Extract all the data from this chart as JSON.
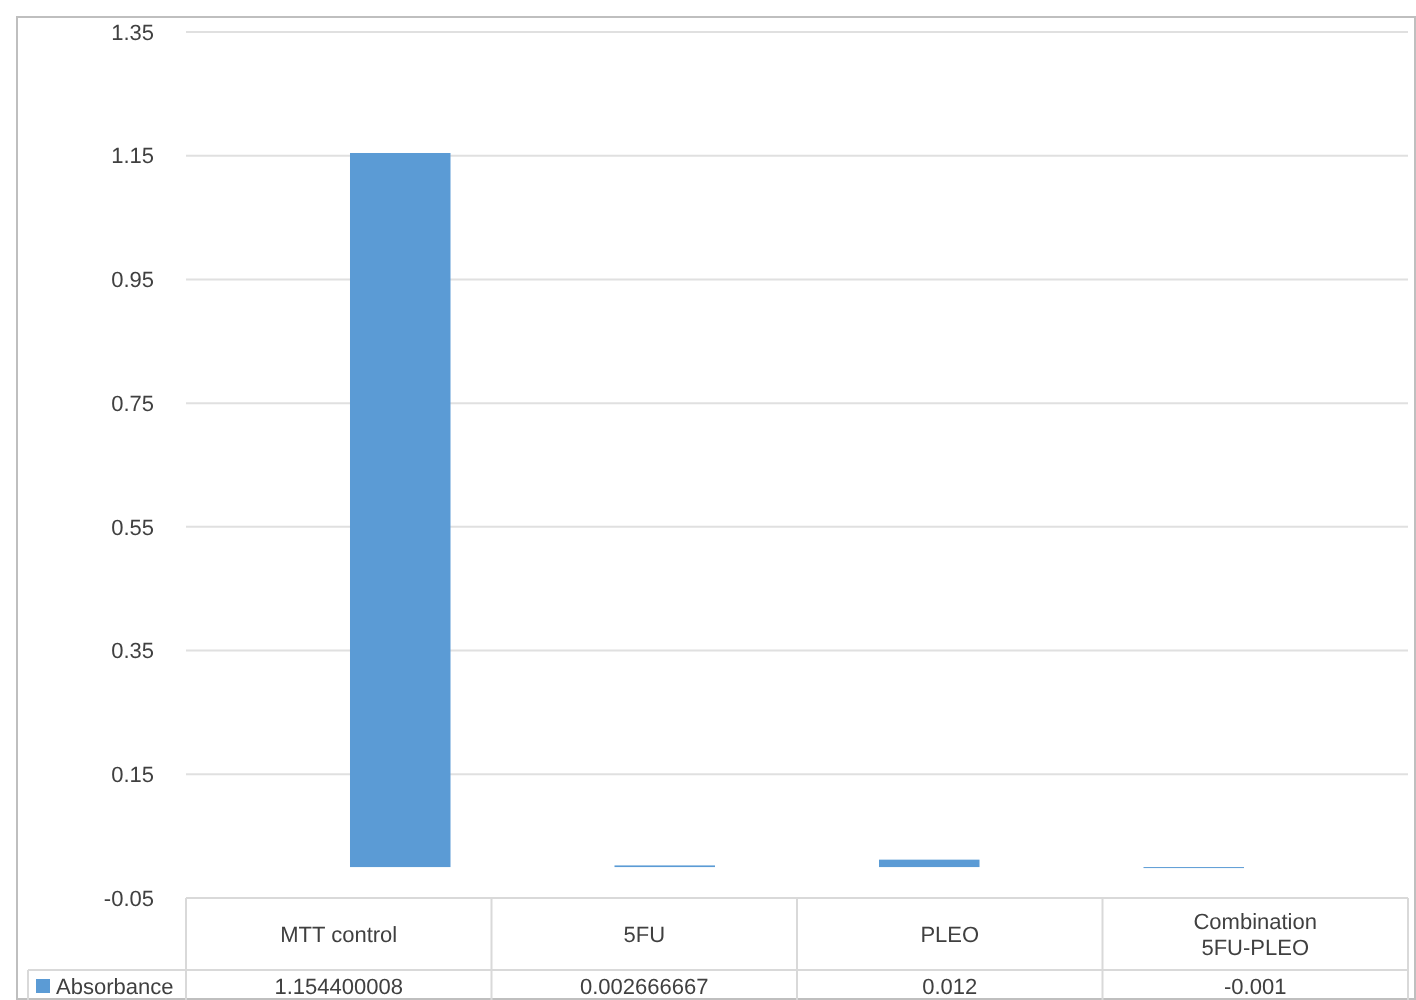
{
  "chart_data": {
    "type": "bar",
    "categories": [
      "MTT control",
      "5FU",
      "PLEO",
      "Combination 5FU-PLEO"
    ],
    "series": [
      {
        "name": "Absorbance",
        "color": "#5b9bd5",
        "values": [
          1.154400008,
          0.002666667,
          0.012,
          -0.001
        ],
        "value_labels": [
          "1.154400008",
          "0.002666667",
          "0.012",
          "-0.001"
        ]
      }
    ],
    "ylim": [
      -0.05,
      1.35
    ],
    "yticks": [
      -0.05,
      0.15,
      0.35,
      0.55,
      0.75,
      0.95,
      1.15,
      1.35
    ],
    "grid": "y",
    "legend": "bottom"
  }
}
